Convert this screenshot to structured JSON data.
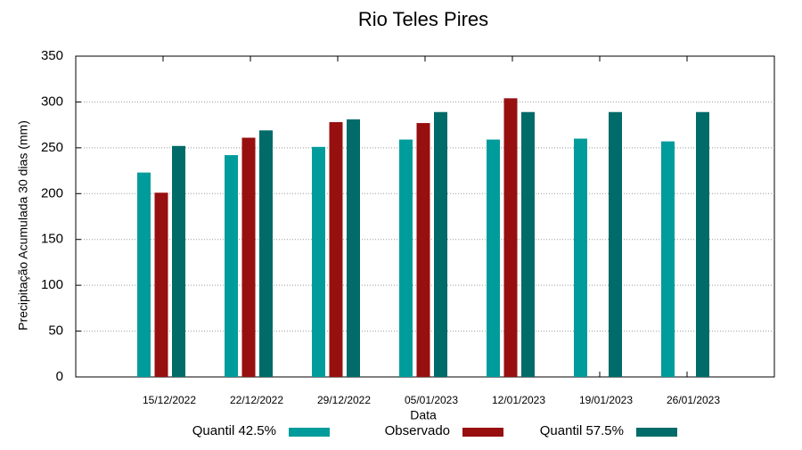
{
  "chart_data": {
    "type": "bar",
    "title": "Rio Teles Pires",
    "x_label": "Data",
    "y_label": "Precipitação Acumulada 30 dias (mm)",
    "categories": [
      "15/12/2022",
      "22/12/2022",
      "29/12/2022",
      "05/01/2023",
      "12/01/2023",
      "19/01/2023",
      "26/01/2023"
    ],
    "series": [
      {
        "name": "Quantil 42.5%",
        "color": "#009c9c",
        "values": [
          223,
          242,
          251,
          259,
          259,
          260,
          257
        ]
      },
      {
        "name": "Observado",
        "color": "#970f0f",
        "values": [
          201,
          261,
          278,
          277,
          304,
          null,
          null
        ]
      },
      {
        "name": "Quantil 57.5%",
        "color": "#006b68",
        "values": [
          252,
          269,
          281,
          289,
          289,
          289,
          289
        ]
      }
    ],
    "ylim": [
      0,
      350
    ],
    "yticks": [
      0,
      50,
      100,
      150,
      200,
      250,
      300,
      350
    ],
    "grid": true,
    "legend": "bottom"
  }
}
